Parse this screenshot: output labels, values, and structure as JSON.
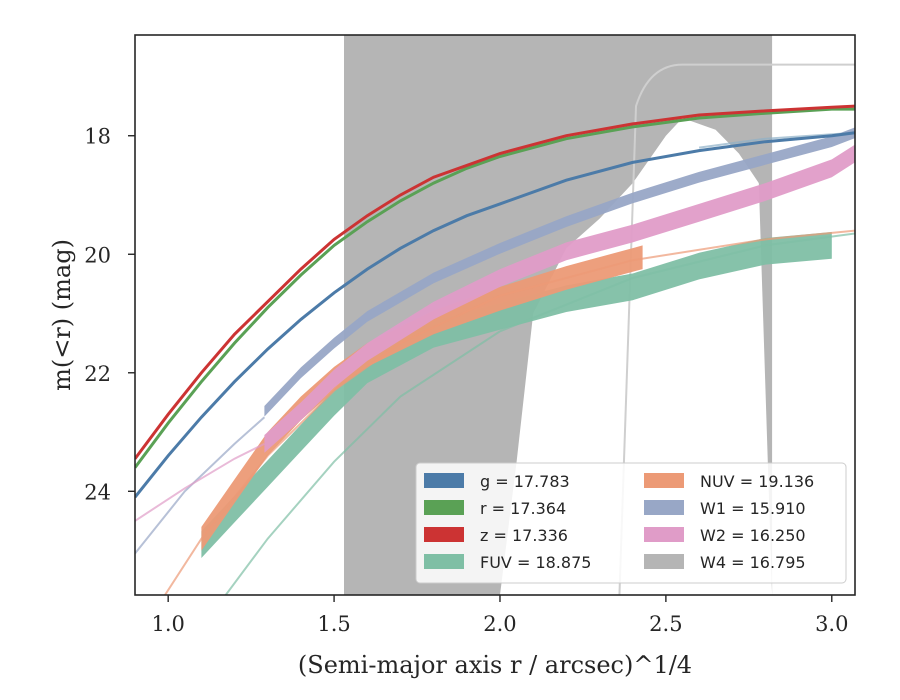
{
  "chart_data": {
    "type": "area",
    "xlabel": "(Semi-major axis r / arcsec)^1/4",
    "ylabel": "m(<r) (mag)",
    "xlim": [
      0.9,
      3.07
    ],
    "ylim": [
      25.75,
      16.3
    ],
    "y_inverted": true,
    "x_ticks": [
      "1.0",
      "1.5",
      "2.0",
      "2.5",
      "3.0"
    ],
    "y_ticks": [
      "18",
      "20",
      "22",
      "24"
    ],
    "grid": false,
    "legend_position": "lower-right",
    "legend": [
      {
        "label": "g = 17.783",
        "color": "#4c7ba8"
      },
      {
        "label": "r = 17.364",
        "color": "#5aa155"
      },
      {
        "label": "z = 17.336",
        "color": "#cc3333"
      },
      {
        "label": "FUV = 18.875",
        "color": "#7fbfa5"
      },
      {
        "label": "NUV = 19.136",
        "color": "#ec9a76"
      },
      {
        "label": "W1 = 15.910",
        "color": "#98a7c6"
      },
      {
        "label": "W2 = 16.250",
        "color": "#e09cc8"
      },
      {
        "label": "W4 = 16.795",
        "color": "#b5b5b5"
      }
    ],
    "series": [
      {
        "name": "g",
        "color": "#4c7ba8",
        "x": [
          0.9,
          1.0,
          1.1,
          1.2,
          1.3,
          1.4,
          1.5,
          1.6,
          1.7,
          1.8,
          1.9,
          2.0,
          2.2,
          2.4,
          2.6,
          2.8,
          3.0,
          3.07
        ],
        "y": [
          24.1,
          23.4,
          22.75,
          22.15,
          21.6,
          21.1,
          20.65,
          20.25,
          19.9,
          19.6,
          19.35,
          19.15,
          18.75,
          18.45,
          18.25,
          18.1,
          18.0,
          17.95
        ]
      },
      {
        "name": "r",
        "color": "#5aa155",
        "x": [
          0.9,
          1.0,
          1.1,
          1.2,
          1.3,
          1.4,
          1.5,
          1.6,
          1.7,
          1.8,
          1.9,
          2.0,
          2.2,
          2.4,
          2.6,
          2.8,
          3.0,
          3.07
        ],
        "y": [
          23.6,
          22.85,
          22.15,
          21.5,
          20.9,
          20.35,
          19.85,
          19.45,
          19.1,
          18.8,
          18.55,
          18.35,
          18.05,
          17.85,
          17.7,
          17.62,
          17.55,
          17.55
        ]
      },
      {
        "name": "z",
        "color": "#cc3333",
        "x": [
          0.9,
          1.0,
          1.1,
          1.2,
          1.3,
          1.4,
          1.5,
          1.6,
          1.7,
          1.8,
          1.9,
          2.0,
          2.2,
          2.4,
          2.6,
          2.8,
          3.0,
          3.07
        ],
        "y": [
          23.45,
          22.7,
          22.0,
          21.35,
          20.8,
          20.25,
          19.75,
          19.35,
          19.0,
          18.7,
          18.5,
          18.3,
          18.0,
          17.8,
          17.65,
          17.58,
          17.52,
          17.5
        ]
      },
      {
        "name": "FUV",
        "color": "#7fbfa5",
        "x": [
          1.1,
          1.2,
          1.3,
          1.4,
          1.5,
          1.6,
          1.8,
          2.0,
          2.2,
          2.4,
          2.6,
          2.8,
          3.0
        ],
        "y": [
          24.9,
          24.3,
          23.7,
          23.1,
          22.5,
          21.95,
          21.35,
          21.05,
          20.75,
          20.55,
          20.2,
          19.95,
          19.85
        ],
        "band": 0.45
      },
      {
        "name": "NUV",
        "color": "#ec9a76",
        "x": [
          1.1,
          1.2,
          1.3,
          1.4,
          1.5,
          1.6,
          1.8,
          2.0,
          2.2,
          2.43
        ],
        "y": [
          24.8,
          24.0,
          23.2,
          22.6,
          22.1,
          21.7,
          21.15,
          20.75,
          20.4,
          20.05
        ],
        "band": 0.4
      },
      {
        "name": "W1",
        "color": "#98a7c6",
        "x": [
          1.29,
          1.4,
          1.5,
          1.6,
          1.8,
          2.0,
          2.2,
          2.4,
          2.6,
          2.8,
          3.0,
          3.07
        ],
        "y": [
          22.65,
          22.0,
          21.5,
          21.05,
          20.4,
          19.9,
          19.45,
          19.05,
          18.7,
          18.4,
          18.1,
          17.95
        ],
        "band": 0.18
      },
      {
        "name": "W2",
        "color": "#e09cc8",
        "x": [
          1.29,
          1.4,
          1.5,
          1.6,
          1.8,
          2.0,
          2.2,
          2.4,
          2.6,
          2.8,
          3.0,
          3.07
        ],
        "y": [
          23.2,
          22.65,
          22.1,
          21.65,
          20.95,
          20.4,
          19.95,
          19.65,
          19.3,
          18.95,
          18.55,
          18.3
        ],
        "band": 0.3
      },
      {
        "name": "W4",
        "color": "#b5b5b5",
        "x": [
          1.53,
          1.6,
          1.8,
          2.0,
          2.05,
          2.1,
          2.2,
          2.3,
          2.4,
          2.5,
          2.55,
          2.65,
          2.72,
          2.78,
          2.82
        ],
        "y_upper": [
          16.0,
          16.0,
          16.0,
          16.0,
          16.0,
          16.0,
          16.3,
          16.2,
          16.0,
          16.0,
          16.0,
          16.0,
          16.0,
          16.0,
          16.0
        ],
        "y_lower": [
          25.75,
          25.75,
          25.75,
          25.75,
          23.5,
          21.0,
          19.9,
          19.4,
          18.8,
          18.0,
          17.7,
          17.9,
          18.3,
          18.8,
          25.75
        ]
      }
    ]
  }
}
